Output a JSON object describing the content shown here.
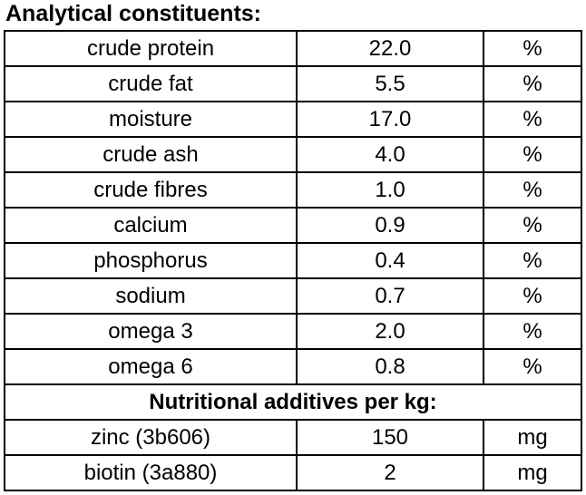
{
  "title": "Analytical constituents:",
  "table": {
    "section_header": "Nutritional additives per kg:",
    "rows": [
      {
        "name": "crude protein",
        "value": "22.0",
        "unit": "%"
      },
      {
        "name": "crude fat",
        "value": "5.5",
        "unit": "%"
      },
      {
        "name": "moisture",
        "value": "17.0",
        "unit": "%"
      },
      {
        "name": "crude ash",
        "value": "4.0",
        "unit": "%"
      },
      {
        "name": "crude fibres",
        "value": "1.0",
        "unit": "%"
      },
      {
        "name": "calcium",
        "value": "0.9",
        "unit": "%"
      },
      {
        "name": "phosphorus",
        "value": "0.4",
        "unit": "%"
      },
      {
        "name": "sodium",
        "value": "0.7",
        "unit": "%"
      },
      {
        "name": "omega 3",
        "value": "2.0",
        "unit": "%"
      },
      {
        "name": "omega 6",
        "value": "0.8",
        "unit": "%"
      }
    ],
    "additive_rows": [
      {
        "name": "zinc (3b606)",
        "value": "150",
        "unit": "mg"
      },
      {
        "name": "biotin (3a880)",
        "value": "2",
        "unit": "mg"
      }
    ]
  },
  "colors": {
    "text": "#000000",
    "border": "#000000",
    "background": "#ffffff"
  }
}
